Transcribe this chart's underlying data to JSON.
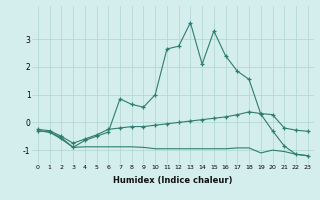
{
  "x": [
    0,
    1,
    2,
    3,
    4,
    5,
    6,
    7,
    8,
    9,
    10,
    11,
    12,
    13,
    14,
    15,
    16,
    17,
    18,
    19,
    20,
    21,
    22,
    23
  ],
  "line1_y": [
    -0.3,
    -0.35,
    -0.55,
    -0.9,
    -0.65,
    -0.5,
    -0.35,
    0.85,
    0.65,
    0.55,
    1.0,
    2.65,
    2.75,
    3.6,
    2.1,
    3.3,
    2.4,
    1.85,
    1.55,
    0.3,
    -0.3,
    -0.85,
    -1.15,
    -1.2
  ],
  "line2_y": [
    -0.25,
    -0.3,
    -0.5,
    -0.75,
    -0.6,
    -0.45,
    -0.25,
    -0.2,
    -0.15,
    -0.15,
    -0.1,
    -0.05,
    0.0,
    0.05,
    0.1,
    0.15,
    0.2,
    0.28,
    0.38,
    0.32,
    0.28,
    -0.2,
    -0.28,
    -0.32
  ],
  "line3_y": [
    -0.3,
    -0.35,
    -0.6,
    -0.9,
    -0.88,
    -0.88,
    -0.88,
    -0.88,
    -0.88,
    -0.9,
    -0.95,
    -0.95,
    -0.95,
    -0.95,
    -0.95,
    -0.95,
    -0.95,
    -0.92,
    -0.92,
    -1.1,
    -1.0,
    -1.05,
    -1.15,
    -1.2
  ],
  "color": "#2d7d6e",
  "bg_color": "#d4eeee",
  "grid_color": "#aed4d4",
  "xlabel": "Humidex (Indice chaleur)",
  "xlim": [
    -0.5,
    23.5
  ],
  "ylim": [
    -1.5,
    4.2
  ],
  "yticks": [
    -1,
    0,
    1,
    2,
    3
  ],
  "xticks": [
    0,
    1,
    2,
    3,
    4,
    5,
    6,
    7,
    8,
    9,
    10,
    11,
    12,
    13,
    14,
    15,
    16,
    17,
    18,
    19,
    20,
    21,
    22,
    23
  ]
}
